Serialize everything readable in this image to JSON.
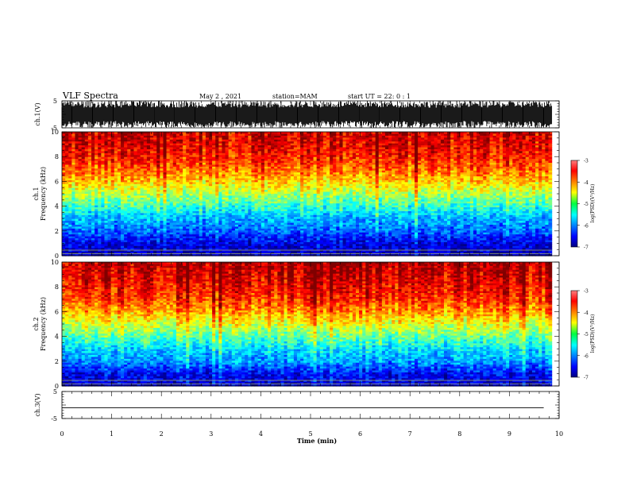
{
  "header": {
    "title": "VLF Spectra",
    "date": "May 2 , 2021",
    "station": "station=MAM",
    "start": "start UT =  22: 0 : 1"
  },
  "chart_data": [
    {
      "type": "line",
      "title": "",
      "ylabel": "ch.1(V)",
      "ylim": [
        -5,
        5
      ],
      "yticks": [
        "5",
        "-5"
      ],
      "xlim": [
        0,
        10
      ],
      "description_values": {
        "envelope_max": 5,
        "envelope_min": -5
      }
    },
    {
      "type": "heatmap",
      "ylabel": [
        "ch.1",
        "Frequency (kHz)"
      ],
      "ylim": [
        0,
        10
      ],
      "yticks": [
        "0",
        "2",
        "4",
        "6",
        "8",
        "10"
      ],
      "xlim": [
        0,
        10
      ],
      "data_x_end": 9.85,
      "colorbar": {
        "label": "log(PSD)(V²/Hz)",
        "range": [
          -7,
          -3
        ],
        "ticks": [
          "-3",
          "-4",
          "-5",
          "-6",
          "-7"
        ]
      },
      "log_psd_profile": [
        [
          0.0,
          -6.8
        ],
        [
          1.0,
          -6.6
        ],
        [
          2.0,
          -6.1
        ],
        [
          3.0,
          -5.8
        ],
        [
          4.0,
          -5.3
        ],
        [
          5.0,
          -4.8
        ],
        [
          6.0,
          -4.3
        ],
        [
          7.0,
          -3.9
        ],
        [
          8.0,
          -3.6
        ],
        [
          9.0,
          -3.4
        ],
        [
          10.0,
          -3.3
        ]
      ]
    },
    {
      "type": "heatmap",
      "ylabel": [
        "ch.2",
        "Frequency (kHz)"
      ],
      "ylim": [
        0,
        10
      ],
      "yticks": [
        "0",
        "2",
        "4",
        "6",
        "8",
        "10"
      ],
      "xlim": [
        0,
        10
      ],
      "data_x_end": 9.85,
      "colorbar": {
        "label": "log(PSD)(V²/Hz)",
        "range": [
          -7,
          -3
        ],
        "ticks": [
          "-3",
          "-4",
          "-5",
          "-6",
          "-7"
        ]
      },
      "log_psd_profile": [
        [
          0.0,
          -6.7
        ],
        [
          1.0,
          -6.5
        ],
        [
          2.0,
          -5.9
        ],
        [
          3.0,
          -5.6
        ],
        [
          4.0,
          -5.1
        ],
        [
          5.0,
          -4.6
        ],
        [
          6.0,
          -4.1
        ],
        [
          7.0,
          -3.7
        ],
        [
          8.0,
          -3.5
        ],
        [
          9.0,
          -3.3
        ],
        [
          10.0,
          -3.2
        ]
      ]
    },
    {
      "type": "line",
      "ylabel": "ch.3(V)",
      "ylim": [
        -5,
        5
      ],
      "yticks": [
        "5",
        "-5"
      ],
      "xlim": [
        0,
        10
      ],
      "xlabel": "Time (min)",
      "xticks": [
        "0",
        "1",
        "2",
        "3",
        "4",
        "5",
        "6",
        "7",
        "8",
        "9",
        "10"
      ],
      "series": [
        {
          "x": [
            0,
            10
          ],
          "y": [
            -1,
            -1
          ]
        }
      ]
    }
  ]
}
